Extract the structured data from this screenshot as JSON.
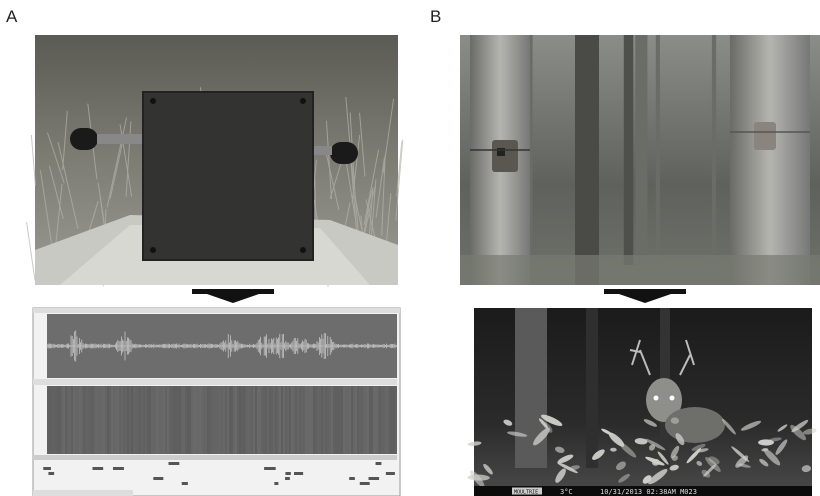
{
  "panels": [
    {
      "label": "A"
    },
    {
      "label": "B",
      "stamp": {
        "brand": "MOULTRIE",
        "temperature": "3°C",
        "datetime": "10/31/2013 02:38AM M023"
      }
    }
  ]
}
